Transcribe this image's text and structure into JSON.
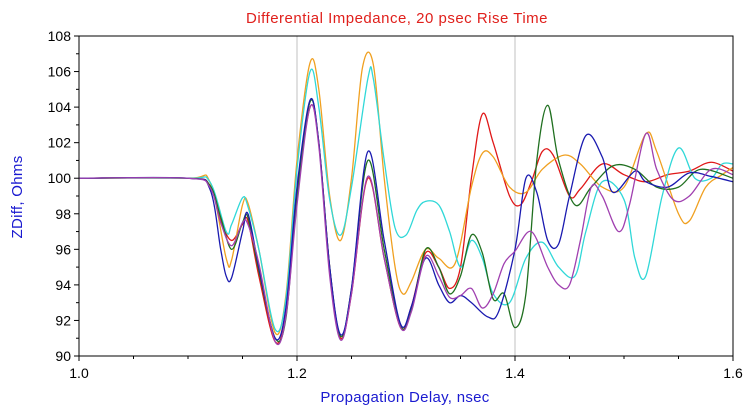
{
  "chart_data": {
    "type": "line",
    "title": "Differential Impedance, 20 psec Rise Time",
    "xlabel": "Propagation Delay, nsec",
    "ylabel": "ZDiff, Ohms",
    "xlim": [
      1.0,
      1.6
    ],
    "ylim": [
      90,
      108
    ],
    "xticks": [
      1.0,
      1.2,
      1.4,
      1.6
    ],
    "xtick_labels": [
      "1.0",
      "1.2",
      "1.4",
      "1.6"
    ],
    "yticks": [
      90,
      92,
      94,
      96,
      98,
      100,
      102,
      104,
      106,
      108
    ],
    "ytick_labels": [
      "90",
      "92",
      "94",
      "96",
      "98",
      "100",
      "102",
      "104",
      "106",
      "108"
    ],
    "grid": {
      "vertical": true,
      "horizontal": false
    },
    "legend": "none",
    "colors": {
      "title": "#e0201c",
      "axis_label": "#1a1ad0",
      "grid": "#c0c0c0",
      "axis": "#000000"
    },
    "series": [
      {
        "color": "#e01818",
        "points": [
          [
            1.0,
            100
          ],
          [
            1.1,
            100
          ],
          [
            1.12,
            99.6
          ],
          [
            1.13,
            97.6
          ],
          [
            1.14,
            96.5
          ],
          [
            1.15,
            97.4
          ],
          [
            1.155,
            97.6
          ],
          [
            1.165,
            94.5
          ],
          [
            1.18,
            90.8
          ],
          [
            1.19,
            92.5
          ],
          [
            1.2,
            99
          ],
          [
            1.212,
            104
          ],
          [
            1.22,
            102
          ],
          [
            1.23,
            95
          ],
          [
            1.24,
            91
          ],
          [
            1.25,
            93.5
          ],
          [
            1.265,
            100
          ],
          [
            1.28,
            95.5
          ],
          [
            1.295,
            91.6
          ],
          [
            1.305,
            92.8
          ],
          [
            1.318,
            95.8
          ],
          [
            1.33,
            95
          ],
          [
            1.34,
            93.8
          ],
          [
            1.35,
            95
          ],
          [
            1.36,
            100
          ],
          [
            1.37,
            103.6
          ],
          [
            1.38,
            102
          ],
          [
            1.395,
            99
          ],
          [
            1.405,
            98.5
          ],
          [
            1.415,
            99.8
          ],
          [
            1.425,
            101.5
          ],
          [
            1.435,
            101.3
          ],
          [
            1.45,
            99
          ],
          [
            1.46,
            99.4
          ],
          [
            1.48,
            100.8
          ],
          [
            1.5,
            100.2
          ],
          [
            1.52,
            99.8
          ],
          [
            1.54,
            100.2
          ],
          [
            1.56,
            100.4
          ],
          [
            1.58,
            100.9
          ],
          [
            1.6,
            100.4
          ]
        ]
      },
      {
        "color": "#f0a020",
        "points": [
          [
            1.0,
            100
          ],
          [
            1.1,
            100
          ],
          [
            1.12,
            99.8
          ],
          [
            1.135,
            95.5
          ],
          [
            1.14,
            95.4
          ],
          [
            1.15,
            98.5
          ],
          [
            1.155,
            98.6
          ],
          [
            1.165,
            96
          ],
          [
            1.18,
            91.3
          ],
          [
            1.19,
            93.5
          ],
          [
            1.2,
            101
          ],
          [
            1.212,
            106.5
          ],
          [
            1.22,
            105
          ],
          [
            1.23,
            99
          ],
          [
            1.24,
            96.5
          ],
          [
            1.25,
            100
          ],
          [
            1.26,
            106.2
          ],
          [
            1.27,
            106.4
          ],
          [
            1.28,
            100
          ],
          [
            1.29,
            95
          ],
          [
            1.297,
            93.5
          ],
          [
            1.305,
            94.2
          ],
          [
            1.318,
            96
          ],
          [
            1.33,
            95.5
          ],
          [
            1.345,
            95.2
          ],
          [
            1.36,
            99.5
          ],
          [
            1.37,
            101.4
          ],
          [
            1.38,
            101.2
          ],
          [
            1.395,
            99.5
          ],
          [
            1.41,
            99.2
          ],
          [
            1.425,
            100.5
          ],
          [
            1.445,
            101.3
          ],
          [
            1.46,
            100.8
          ],
          [
            1.48,
            99.5
          ],
          [
            1.5,
            99.5
          ],
          [
            1.52,
            102.5
          ],
          [
            1.53,
            101.5
          ],
          [
            1.55,
            98
          ],
          [
            1.56,
            97.6
          ],
          [
            1.575,
            99.5
          ],
          [
            1.59,
            100.2
          ],
          [
            1.6,
            100.6
          ]
        ]
      },
      {
        "color": "#30d8d8",
        "points": [
          [
            1.0,
            100
          ],
          [
            1.1,
            100
          ],
          [
            1.12,
            99.8
          ],
          [
            1.135,
            97
          ],
          [
            1.14,
            97.4
          ],
          [
            1.15,
            98.9
          ],
          [
            1.155,
            98.4
          ],
          [
            1.165,
            96
          ],
          [
            1.18,
            91.5
          ],
          [
            1.19,
            93.3
          ],
          [
            1.2,
            100.5
          ],
          [
            1.212,
            106
          ],
          [
            1.22,
            104
          ],
          [
            1.23,
            98.8
          ],
          [
            1.24,
            96.8
          ],
          [
            1.25,
            99.5
          ],
          [
            1.265,
            105.6
          ],
          [
            1.27,
            105.6
          ],
          [
            1.28,
            101
          ],
          [
            1.29,
            97.2
          ],
          [
            1.3,
            96.8
          ],
          [
            1.31,
            98.2
          ],
          [
            1.318,
            98.7
          ],
          [
            1.33,
            98.5
          ],
          [
            1.34,
            97
          ],
          [
            1.35,
            95
          ],
          [
            1.36,
            96.5
          ],
          [
            1.37,
            95.5
          ],
          [
            1.38,
            93.5
          ],
          [
            1.395,
            93
          ],
          [
            1.41,
            95.5
          ],
          [
            1.425,
            96.4
          ],
          [
            1.44,
            95
          ],
          [
            1.455,
            94.5
          ],
          [
            1.465,
            97
          ],
          [
            1.48,
            99.8
          ],
          [
            1.5,
            98.8
          ],
          [
            1.51,
            95.5
          ],
          [
            1.52,
            94.5
          ],
          [
            1.535,
            99
          ],
          [
            1.55,
            101.7
          ],
          [
            1.565,
            100
          ],
          [
            1.58,
            100
          ],
          [
            1.59,
            100.8
          ],
          [
            1.6,
            100.8
          ]
        ]
      },
      {
        "color": "#207020",
        "points": [
          [
            1.0,
            100
          ],
          [
            1.1,
            100
          ],
          [
            1.12,
            99.6
          ],
          [
            1.13,
            97.8
          ],
          [
            1.14,
            96
          ],
          [
            1.15,
            97.5
          ],
          [
            1.155,
            97.8
          ],
          [
            1.165,
            94.8
          ],
          [
            1.18,
            91
          ],
          [
            1.19,
            92.2
          ],
          [
            1.2,
            99
          ],
          [
            1.212,
            104.3
          ],
          [
            1.22,
            102
          ],
          [
            1.23,
            95
          ],
          [
            1.24,
            91.1
          ],
          [
            1.25,
            93.8
          ],
          [
            1.265,
            101
          ],
          [
            1.28,
            96
          ],
          [
            1.295,
            91.7
          ],
          [
            1.305,
            92.6
          ],
          [
            1.318,
            96
          ],
          [
            1.33,
            95
          ],
          [
            1.34,
            93.5
          ],
          [
            1.35,
            94.5
          ],
          [
            1.36,
            96.8
          ],
          [
            1.37,
            95.8
          ],
          [
            1.38,
            93.2
          ],
          [
            1.39,
            93.5
          ],
          [
            1.4,
            91.6
          ],
          [
            1.41,
            93.5
          ],
          [
            1.42,
            101
          ],
          [
            1.43,
            104.1
          ],
          [
            1.44,
            101
          ],
          [
            1.455,
            98.5
          ],
          [
            1.47,
            99.5
          ],
          [
            1.49,
            100.7
          ],
          [
            1.51,
            100.5
          ],
          [
            1.53,
            99.5
          ],
          [
            1.55,
            99.5
          ],
          [
            1.57,
            100.5
          ],
          [
            1.6,
            100
          ]
        ]
      },
      {
        "color": "#1a1ab0",
        "points": [
          [
            1.0,
            100
          ],
          [
            1.1,
            100
          ],
          [
            1.12,
            99.4
          ],
          [
            1.13,
            96
          ],
          [
            1.135,
            94.5
          ],
          [
            1.14,
            94.4
          ],
          [
            1.15,
            97
          ],
          [
            1.155,
            98
          ],
          [
            1.165,
            95
          ],
          [
            1.18,
            91
          ],
          [
            1.19,
            92.8
          ],
          [
            1.2,
            99.5
          ],
          [
            1.212,
            104.4
          ],
          [
            1.22,
            102
          ],
          [
            1.23,
            95
          ],
          [
            1.24,
            91.2
          ],
          [
            1.25,
            93.8
          ],
          [
            1.265,
            101.5
          ],
          [
            1.28,
            96.5
          ],
          [
            1.295,
            91.8
          ],
          [
            1.305,
            92.8
          ],
          [
            1.318,
            95.5
          ],
          [
            1.33,
            94
          ],
          [
            1.34,
            93
          ],
          [
            1.35,
            93.4
          ],
          [
            1.36,
            93
          ],
          [
            1.375,
            92.2
          ],
          [
            1.385,
            92.5
          ],
          [
            1.4,
            96
          ],
          [
            1.41,
            100
          ],
          [
            1.42,
            99.2
          ],
          [
            1.43,
            96.5
          ],
          [
            1.44,
            96.3
          ],
          [
            1.45,
            99
          ],
          [
            1.465,
            102.4
          ],
          [
            1.48,
            101.2
          ],
          [
            1.49,
            99.2
          ],
          [
            1.51,
            100.4
          ],
          [
            1.52,
            99.8
          ],
          [
            1.54,
            99.5
          ],
          [
            1.56,
            100.3
          ],
          [
            1.58,
            100.1
          ],
          [
            1.6,
            99.8
          ]
        ]
      },
      {
        "color": "#a040b0",
        "points": [
          [
            1.0,
            100
          ],
          [
            1.1,
            100
          ],
          [
            1.12,
            99.5
          ],
          [
            1.13,
            97.5
          ],
          [
            1.14,
            96.2
          ],
          [
            1.15,
            97.5
          ],
          [
            1.155,
            97.4
          ],
          [
            1.165,
            95.2
          ],
          [
            1.18,
            90.8
          ],
          [
            1.19,
            92.3
          ],
          [
            1.2,
            98.5
          ],
          [
            1.212,
            104
          ],
          [
            1.22,
            101.8
          ],
          [
            1.23,
            94.5
          ],
          [
            1.24,
            90.9
          ],
          [
            1.25,
            93.5
          ],
          [
            1.265,
            100.1
          ],
          [
            1.28,
            95.5
          ],
          [
            1.295,
            91.6
          ],
          [
            1.305,
            92.5
          ],
          [
            1.318,
            95.6
          ],
          [
            1.33,
            94.5
          ],
          [
            1.34,
            93.3
          ],
          [
            1.35,
            93.4
          ],
          [
            1.36,
            93.8
          ],
          [
            1.37,
            92.7
          ],
          [
            1.38,
            93.5
          ],
          [
            1.39,
            95.2
          ],
          [
            1.4,
            95.9
          ],
          [
            1.415,
            97
          ],
          [
            1.43,
            95
          ],
          [
            1.44,
            94
          ],
          [
            1.45,
            94
          ],
          [
            1.46,
            96.5
          ],
          [
            1.47,
            99.5
          ],
          [
            1.48,
            99
          ],
          [
            1.495,
            97
          ],
          [
            1.505,
            98.5
          ],
          [
            1.52,
            102.5
          ],
          [
            1.53,
            100.5
          ],
          [
            1.545,
            98.8
          ],
          [
            1.56,
            99
          ],
          [
            1.58,
            100.5
          ],
          [
            1.6,
            100.2
          ]
        ]
      }
    ]
  }
}
